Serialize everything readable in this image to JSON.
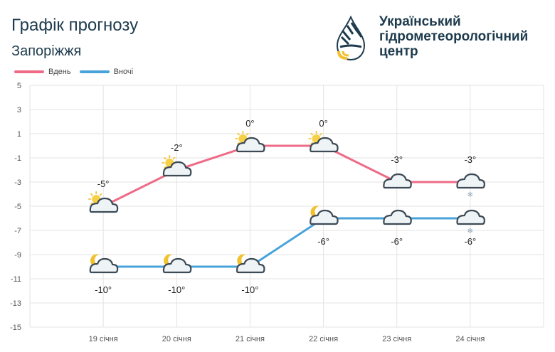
{
  "header": {
    "title": "Графік прогнозу",
    "city": "Запоріжжя",
    "org_name": "Український\nгідрометеорологічний\nцентр"
  },
  "colors": {
    "day": "#ee6b87",
    "night": "#48a3da",
    "grid": "#e3e3e3",
    "text": "#1e3b4d"
  },
  "chart_data": {
    "type": "line",
    "categories": [
      "19 січня",
      "20 січня",
      "21 січня",
      "22 січня",
      "23 січня",
      "24 січня"
    ],
    "series": [
      {
        "name": "Вдень",
        "values": [
          -5,
          -2,
          0,
          0,
          -3,
          -3
        ],
        "labels": [
          "-5°",
          "-2°",
          "0°",
          "0°",
          "-3°",
          "-3°"
        ],
        "icons": [
          "sun-cloud-icon",
          "sun-cloud-icon",
          "sun-cloud-icon",
          "sun-cloud-icon",
          "cloud-icon",
          "cloud-snow-icon"
        ]
      },
      {
        "name": "Вночі",
        "values": [
          -10,
          -10,
          -10,
          -6,
          -6,
          -6
        ],
        "labels": [
          "-10°",
          "-10°",
          "-10°",
          "-6°",
          "-6°",
          "-6°"
        ],
        "icons": [
          "moon-cloud-icon",
          "moon-cloud-icon",
          "moon-cloud-icon",
          "moon-cloud-icon",
          "cloud-icon",
          "cloud-snow-icon"
        ]
      }
    ],
    "ylim": [
      -15,
      5
    ],
    "yticks": [
      "5",
      "3",
      "1",
      "-1",
      "-3",
      "-5",
      "-7",
      "-9",
      "-11",
      "-13",
      "-15"
    ],
    "grid": true,
    "legend_position": "top-left"
  }
}
